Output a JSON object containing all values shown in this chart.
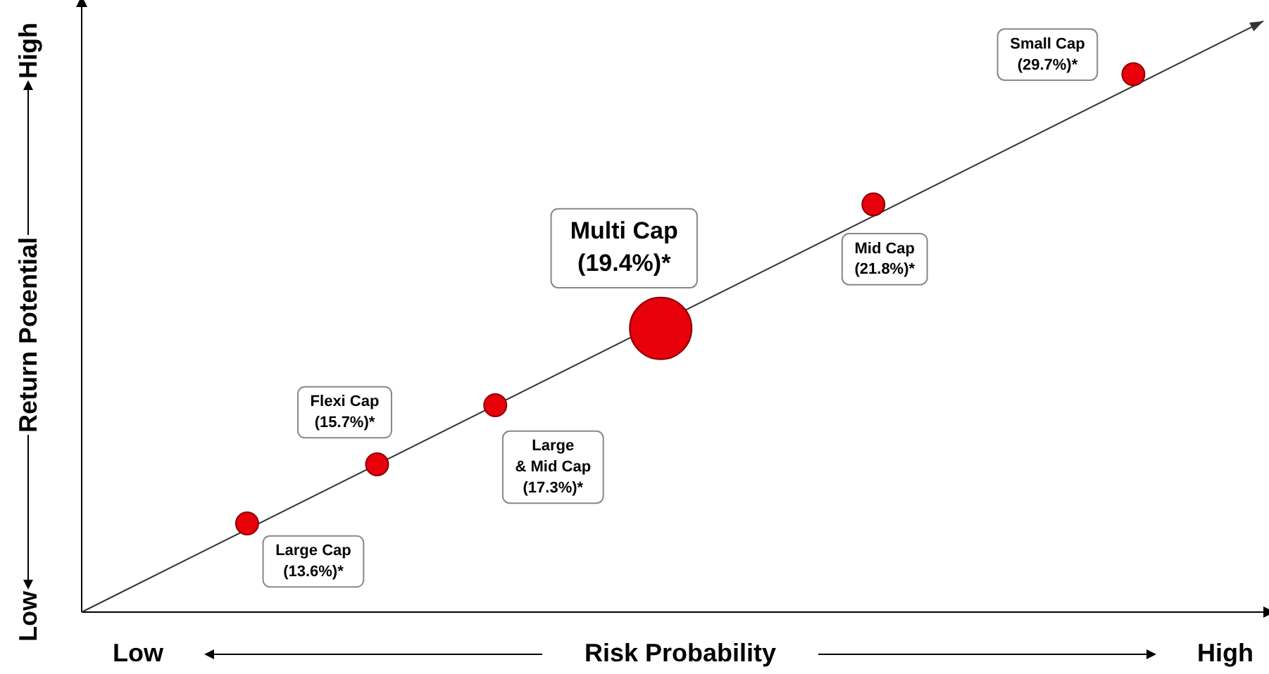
{
  "chart_data": {
    "type": "other",
    "xlabel": "Risk Probability",
    "ylabel": "Return Potential",
    "annotations": [
      "Low",
      "High",
      "Low",
      "High"
    ],
    "categories": [
      "Large Cap",
      "Flexi Cap",
      "Large\n& Mid Cap",
      "Multi Cap",
      "Mid Cap",
      "Small Cap"
    ],
    "values": [
      13.6,
      15.7,
      17.3,
      19.4,
      21.8,
      29.7
    ],
    "value_labels": [
      "(13.6%)*",
      "(15.7%)*",
      "(17.3%)*",
      "(19.4%)*",
      "(21.8%)*",
      "(29.7%)*"
    ],
    "color": "#e8000b"
  }
}
